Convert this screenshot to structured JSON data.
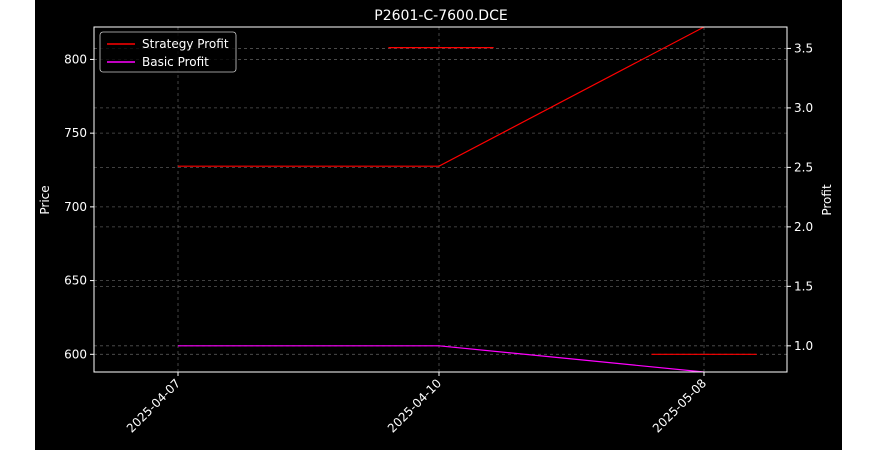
{
  "chart_data": {
    "type": "line",
    "title": "P2601-C-7600.DCE",
    "x": [
      "2025-04-07",
      "2025-04-10",
      "2025-05-08"
    ],
    "left_axis": {
      "label": "Price",
      "ylim": [
        588,
        822
      ],
      "ticks": [
        600,
        650,
        700,
        750,
        800
      ]
    },
    "right_axis": {
      "label": "Profit",
      "ylim": [
        0.78,
        3.68
      ],
      "ticks": [
        1.0,
        1.5,
        2.0,
        2.5,
        3.0,
        3.5
      ]
    },
    "series": [
      {
        "name": "Strategy Profit",
        "axis": "right",
        "color": "#ff0000",
        "values": [
          2.51,
          2.51,
          3.68
        ]
      },
      {
        "name": "Basic Profit",
        "axis": "right",
        "color": "#ff00ff",
        "values": [
          1.0,
          1.0,
          0.78
        ]
      }
    ],
    "extra_segments": [
      {
        "color": "#ff0000",
        "axis": "left",
        "x_from": 1.8,
        "x_to": 2.2,
        "value": 808
      },
      {
        "color": "#ff0000",
        "axis": "left",
        "x_from": 1.8,
        "x_to": 2.2,
        "value": 600
      }
    ],
    "grid": true,
    "legend": "top-left"
  }
}
